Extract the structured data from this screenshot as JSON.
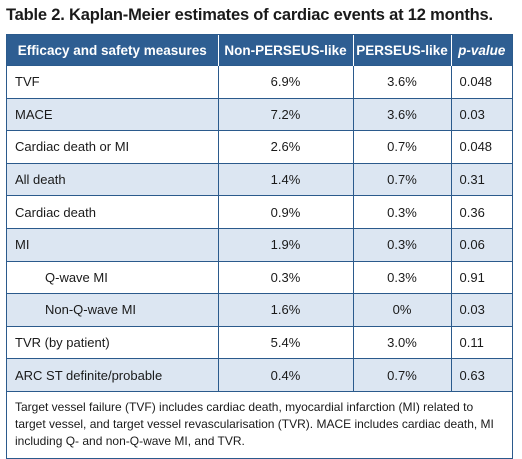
{
  "title": "Table 2. Kaplan-Meier estimates of cardiac events at 12 months.",
  "columns": [
    "Efficacy and safety measures",
    "Non-PERSEUS-like",
    "PERSEUS-like",
    "p-value"
  ],
  "rows": [
    {
      "label": "TVF",
      "non_perseus": "6.9%",
      "perseus": "3.6%",
      "p": "0.048",
      "indent": false
    },
    {
      "label": "MACE",
      "non_perseus": "7.2%",
      "perseus": "3.6%",
      "p": "0.03",
      "indent": false
    },
    {
      "label": "Cardiac death or MI",
      "non_perseus": "2.6%",
      "perseus": "0.7%",
      "p": "0.048",
      "indent": false
    },
    {
      "label": "All death",
      "non_perseus": "1.4%",
      "perseus": "0.7%",
      "p": "0.31",
      "indent": false
    },
    {
      "label": "Cardiac death",
      "non_perseus": "0.9%",
      "perseus": "0.3%",
      "p": "0.36",
      "indent": false
    },
    {
      "label": "MI",
      "non_perseus": "1.9%",
      "perseus": "0.3%",
      "p": "0.06",
      "indent": false
    },
    {
      "label": "Q-wave MI",
      "non_perseus": "0.3%",
      "perseus": "0.3%",
      "p": "0.91",
      "indent": true
    },
    {
      "label": "Non-Q-wave MI",
      "non_perseus": "1.6%",
      "perseus": "0%",
      "p": "0.03",
      "indent": true
    },
    {
      "label": "TVR (by patient)",
      "non_perseus": "5.4%",
      "perseus": "3.0%",
      "p": "0.11",
      "indent": false
    },
    {
      "label": "ARC ST definite/probable",
      "non_perseus": "0.4%",
      "perseus": "0.7%",
      "p": "0.63",
      "indent": false
    }
  ],
  "footnote": "Target vessel failure (TVF) includes cardiac death, myocardial infarction (MI) related to target vessel, and target vessel revascularisation (TVR). MACE includes cardiac death, MI including Q- and non-Q-wave MI, and TVR.",
  "colors": {
    "header_bg": "#2e5e92",
    "stripe": "#dce6f2",
    "border": "#2b5a8c"
  }
}
